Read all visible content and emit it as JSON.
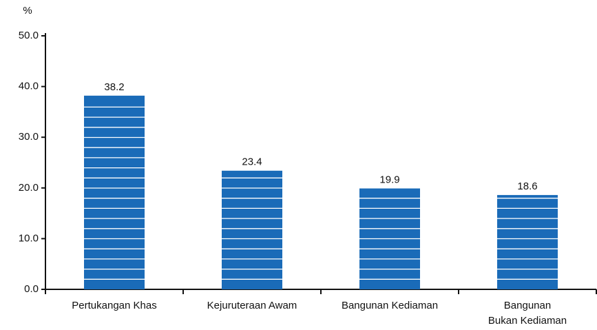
{
  "chart_data": {
    "type": "bar",
    "y_label": "%",
    "categories": [
      "Pertukangan Khas",
      "Kejuruteraan Awam",
      "Bangunan Kediaman",
      "Bangunan\nBukan Kediaman"
    ],
    "values": [
      38.2,
      23.4,
      19.9,
      18.6
    ],
    "color": "#1a6bb8",
    "ylim": [
      0,
      50
    ],
    "yticks": [
      {
        "value": 0,
        "label": "0.0"
      },
      {
        "value": 10,
        "label": "10.0"
      },
      {
        "value": 20,
        "label": "20.0"
      },
      {
        "value": 30,
        "label": "30.0"
      },
      {
        "value": 40,
        "label": "40.0"
      },
      {
        "value": 50,
        "label": "50.0"
      }
    ],
    "grid": false
  }
}
